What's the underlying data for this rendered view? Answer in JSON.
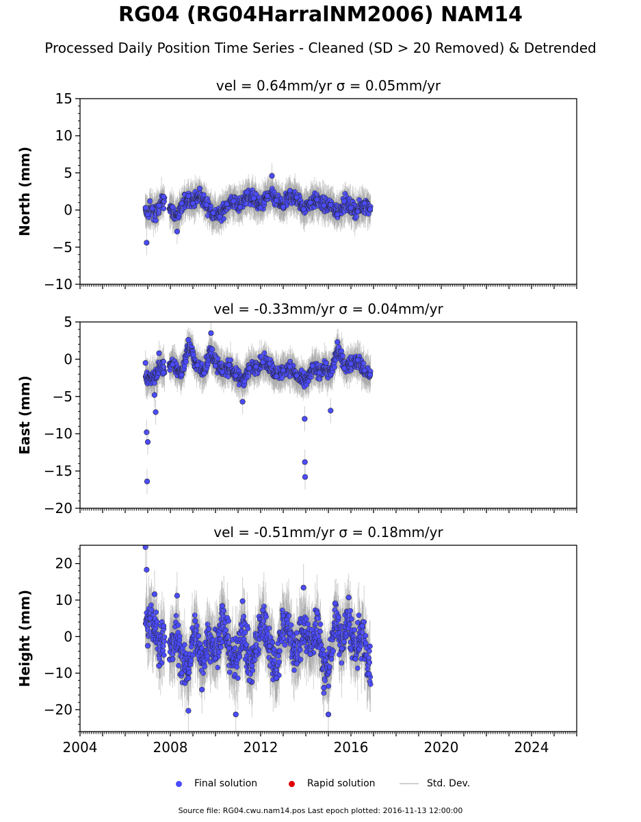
{
  "title": "RG04 (RG04HarralNM2006) NAM14",
  "subtitle": "Processed Daily Position Time Series - Cleaned (SD > 20 Removed) & Detrended",
  "legend": {
    "final": "Final solution",
    "rapid": "Rapid solution",
    "std": "Std. Dev."
  },
  "source": "Source file: RG04.cwu.nam14.pos  Last epoch plotted: 2016-11-13 12:00:00",
  "colors": {
    "final": "#4b4bff",
    "rapid": "#e00000",
    "std": "#9a9a9a"
  },
  "chart_data": [
    {
      "type": "scatter",
      "panel_title": "vel = 0.64mm/yr   σ = 0.05mm/yr",
      "ylabel": "North (mm)",
      "xlim": [
        2004,
        2026
      ],
      "ylim": [
        -10,
        15
      ],
      "yticks": [
        -10,
        -5,
        0,
        5,
        10,
        15
      ],
      "xticks": [
        2004,
        2008,
        2012,
        2016,
        2020,
        2024
      ],
      "data_range": [
        2006.9,
        2016.87
      ],
      "series": [
        {
          "name": "Final solution",
          "x": [
            2006.9,
            2006.95,
            2007.0,
            2007.1,
            2007.2,
            2007.35,
            2007.5,
            2007.7,
            2008.1,
            2008.3,
            2008.5,
            2008.8,
            2009.0,
            2009.3,
            2009.6,
            2009.9,
            2010.2,
            2010.5,
            2010.8,
            2011.1,
            2011.4,
            2011.7,
            2012.0,
            2012.3,
            2012.5,
            2012.7,
            2013.0,
            2013.3,
            2013.6,
            2013.9,
            2014.2,
            2014.5,
            2014.8,
            2015.1,
            2015.4,
            2015.7,
            2016.0,
            2016.3,
            2016.6,
            2016.85
          ],
          "y": [
            0.3,
            -4.4,
            -0.6,
            1.2,
            0.2,
            -1.4,
            0.6,
            1.8,
            0.4,
            -2.9,
            0.9,
            1.9,
            0.9,
            2.9,
            0.7,
            -0.4,
            -0.9,
            0.8,
            1.2,
            0.4,
            2.4,
            1.6,
            0.3,
            1.9,
            4.6,
            1.3,
            0.4,
            2.6,
            1.7,
            0.1,
            1.0,
            1.4,
            0.6,
            0.7,
            -0.6,
            1.2,
            0.3,
            -0.2,
            0.9,
            0.1
          ]
        }
      ]
    },
    {
      "type": "scatter",
      "panel_title": "vel = -0.33mm/yr   σ = 0.04mm/yr",
      "ylabel": "East (mm)",
      "xlim": [
        2004,
        2026
      ],
      "ylim": [
        -20,
        5
      ],
      "yticks": [
        -20,
        -15,
        -10,
        -5,
        0,
        5
      ],
      "xticks": [
        2004,
        2008,
        2012,
        2016,
        2020,
        2024
      ],
      "data_range": [
        2006.9,
        2016.87
      ],
      "series": [
        {
          "name": "Final solution",
          "x": [
            2006.9,
            2006.95,
            2006.97,
            2007.0,
            2007.3,
            2007.35,
            2007.5,
            2007.7,
            2008.1,
            2008.5,
            2008.8,
            2009.2,
            2009.5,
            2009.8,
            2010.0,
            2010.3,
            2010.6,
            2010.9,
            2011.2,
            2011.5,
            2011.8,
            2012.1,
            2012.4,
            2012.7,
            2013.0,
            2013.3,
            2013.6,
            2013.95,
            2013.96,
            2013.97,
            2014.3,
            2014.6,
            2014.9,
            2015.1,
            2015.4,
            2015.7,
            2016.0,
            2016.3,
            2016.6,
            2016.85
          ],
          "y": [
            -0.5,
            -9.8,
            -16.4,
            -11.1,
            -4.8,
            -7.1,
            0.8,
            -1.8,
            -0.7,
            -2.1,
            2.6,
            -0.8,
            -1.9,
            3.5,
            -0.9,
            -1.7,
            -0.8,
            -2.2,
            -5.7,
            -1.2,
            -1.0,
            -0.4,
            -0.6,
            -2.3,
            -1.5,
            -1.0,
            -2.2,
            -8.0,
            -13.8,
            -15.8,
            -0.9,
            -1.8,
            -0.5,
            -6.9,
            2.3,
            -1.2,
            -0.6,
            -0.1,
            -1.5,
            -2.1
          ]
        }
      ]
    },
    {
      "type": "scatter",
      "panel_title": "vel = -0.51mm/yr   σ = 0.18mm/yr",
      "ylabel": "Height (mm)",
      "xlim": [
        2004,
        2026
      ],
      "ylim": [
        -26,
        25
      ],
      "yticks": [
        -20,
        -10,
        0,
        10,
        20
      ],
      "xticks": [
        2004,
        2008,
        2012,
        2016,
        2020,
        2024
      ],
      "data_range": [
        2006.9,
        2016.87
      ],
      "series": [
        {
          "name": "Final solution",
          "x": [
            2006.9,
            2006.95,
            2007.0,
            2007.1,
            2007.3,
            2007.5,
            2007.7,
            2008.1,
            2008.3,
            2008.5,
            2008.8,
            2009.1,
            2009.4,
            2009.7,
            2010.0,
            2010.3,
            2010.6,
            2010.9,
            2011.2,
            2011.5,
            2011.8,
            2012.1,
            2012.4,
            2012.7,
            2013.0,
            2013.3,
            2013.6,
            2013.9,
            2014.2,
            2014.5,
            2014.8,
            2015.0,
            2015.3,
            2015.6,
            2015.9,
            2016.2,
            2016.5,
            2016.8
          ],
          "y": [
            24.5,
            18.3,
            -2.5,
            5.0,
            11.6,
            -8.0,
            2.9,
            -6.2,
            11.2,
            -10.0,
            -20.3,
            4.3,
            -14.5,
            2.1,
            -6.0,
            8.4,
            -3.2,
            -21.3,
            9.7,
            -12.0,
            -4.1,
            7.2,
            -2.6,
            -11.3,
            5.7,
            0.9,
            -7.4,
            13.4,
            -4.8,
            6.5,
            -14.0,
            -21.3,
            9.1,
            -3.3,
            10.7,
            -6.1,
            2.9,
            -10.2
          ]
        }
      ]
    }
  ]
}
